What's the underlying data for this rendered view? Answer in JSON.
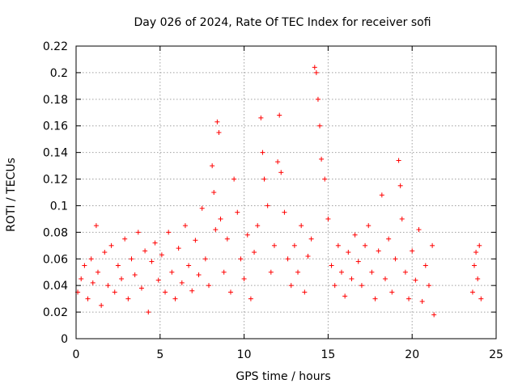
{
  "chart_data": {
    "type": "scatter",
    "title": "Day 026 of 2024, Rate Of TEC Index for receiver sofi",
    "xlabel": "GPS time / hours",
    "ylabel": "ROTI / TECUs",
    "xlim": [
      0,
      25
    ],
    "ylim": [
      0,
      0.22
    ],
    "x_ticks": [
      "0",
      "5",
      "10",
      "15",
      "20",
      "25"
    ],
    "y_ticks": [
      "0",
      "0.02",
      "0.04",
      "0.06",
      "0.08",
      "0.1",
      "0.12",
      "0.14",
      "0.16",
      "0.18",
      "0.2",
      "0.22"
    ],
    "grid": true,
    "marker": "+",
    "series_color": "#ff0000",
    "series": [
      {
        "name": "ROTI",
        "points": [
          [
            0.1,
            0.035
          ],
          [
            0.3,
            0.045
          ],
          [
            0.5,
            0.055
          ],
          [
            0.7,
            0.03
          ],
          [
            0.9,
            0.06
          ],
          [
            1.0,
            0.042
          ],
          [
            1.2,
            0.085
          ],
          [
            1.3,
            0.05
          ],
          [
            1.5,
            0.025
          ],
          [
            1.7,
            0.065
          ],
          [
            1.9,
            0.04
          ],
          [
            2.1,
            0.07
          ],
          [
            2.3,
            0.035
          ],
          [
            2.5,
            0.055
          ],
          [
            2.7,
            0.045
          ],
          [
            2.9,
            0.075
          ],
          [
            3.1,
            0.03
          ],
          [
            3.3,
            0.06
          ],
          [
            3.5,
            0.048
          ],
          [
            3.7,
            0.08
          ],
          [
            3.9,
            0.038
          ],
          [
            4.1,
            0.066
          ],
          [
            4.3,
            0.02
          ],
          [
            4.5,
            0.058
          ],
          [
            4.7,
            0.072
          ],
          [
            4.9,
            0.044
          ],
          [
            5.1,
            0.063
          ],
          [
            5.3,
            0.035
          ],
          [
            5.5,
            0.08
          ],
          [
            5.7,
            0.05
          ],
          [
            5.9,
            0.03
          ],
          [
            6.1,
            0.068
          ],
          [
            6.3,
            0.042
          ],
          [
            6.5,
            0.085
          ],
          [
            6.7,
            0.055
          ],
          [
            6.9,
            0.036
          ],
          [
            7.1,
            0.074
          ],
          [
            7.3,
            0.048
          ],
          [
            7.5,
            0.098
          ],
          [
            7.7,
            0.06
          ],
          [
            7.9,
            0.04
          ],
          [
            8.1,
            0.13
          ],
          [
            8.2,
            0.11
          ],
          [
            8.3,
            0.082
          ],
          [
            8.4,
            0.163
          ],
          [
            8.5,
            0.155
          ],
          [
            8.6,
            0.09
          ],
          [
            8.8,
            0.05
          ],
          [
            9.0,
            0.075
          ],
          [
            9.2,
            0.035
          ],
          [
            9.4,
            0.12
          ],
          [
            9.6,
            0.095
          ],
          [
            9.8,
            0.06
          ],
          [
            10.0,
            0.045
          ],
          [
            10.2,
            0.078
          ],
          [
            10.4,
            0.03
          ],
          [
            10.6,
            0.065
          ],
          [
            10.8,
            0.085
          ],
          [
            11.0,
            0.166
          ],
          [
            11.1,
            0.14
          ],
          [
            11.2,
            0.12
          ],
          [
            11.4,
            0.1
          ],
          [
            11.6,
            0.05
          ],
          [
            11.8,
            0.07
          ],
          [
            12.0,
            0.133
          ],
          [
            12.1,
            0.168
          ],
          [
            12.2,
            0.125
          ],
          [
            12.4,
            0.095
          ],
          [
            12.6,
            0.06
          ],
          [
            12.8,
            0.04
          ],
          [
            13.0,
            0.07
          ],
          [
            13.2,
            0.05
          ],
          [
            13.4,
            0.085
          ],
          [
            13.6,
            0.035
          ],
          [
            13.8,
            0.062
          ],
          [
            14.0,
            0.075
          ],
          [
            14.2,
            0.204
          ],
          [
            14.3,
            0.2
          ],
          [
            14.4,
            0.18
          ],
          [
            14.5,
            0.16
          ],
          [
            14.6,
            0.135
          ],
          [
            14.8,
            0.12
          ],
          [
            15.0,
            0.09
          ],
          [
            15.2,
            0.055
          ],
          [
            15.4,
            0.04
          ],
          [
            15.6,
            0.07
          ],
          [
            15.8,
            0.05
          ],
          [
            16.0,
            0.032
          ],
          [
            16.2,
            0.065
          ],
          [
            16.4,
            0.045
          ],
          [
            16.6,
            0.078
          ],
          [
            16.8,
            0.058
          ],
          [
            17.0,
            0.04
          ],
          [
            17.2,
            0.07
          ],
          [
            17.4,
            0.085
          ],
          [
            17.6,
            0.05
          ],
          [
            17.8,
            0.03
          ],
          [
            18.0,
            0.066
          ],
          [
            18.2,
            0.108
          ],
          [
            18.4,
            0.045
          ],
          [
            18.6,
            0.075
          ],
          [
            18.8,
            0.035
          ],
          [
            19.0,
            0.06
          ],
          [
            19.2,
            0.134
          ],
          [
            19.3,
            0.115
          ],
          [
            19.4,
            0.09
          ],
          [
            19.6,
            0.05
          ],
          [
            19.8,
            0.03
          ],
          [
            20.0,
            0.066
          ],
          [
            20.2,
            0.044
          ],
          [
            20.4,
            0.082
          ],
          [
            20.6,
            0.028
          ],
          [
            20.8,
            0.055
          ],
          [
            21.0,
            0.04
          ],
          [
            21.2,
            0.07
          ],
          [
            21.3,
            0.018
          ],
          [
            23.6,
            0.035
          ],
          [
            23.7,
            0.055
          ],
          [
            23.8,
            0.065
          ],
          [
            23.9,
            0.045
          ],
          [
            24.0,
            0.07
          ],
          [
            24.1,
            0.03
          ]
        ]
      }
    ]
  }
}
